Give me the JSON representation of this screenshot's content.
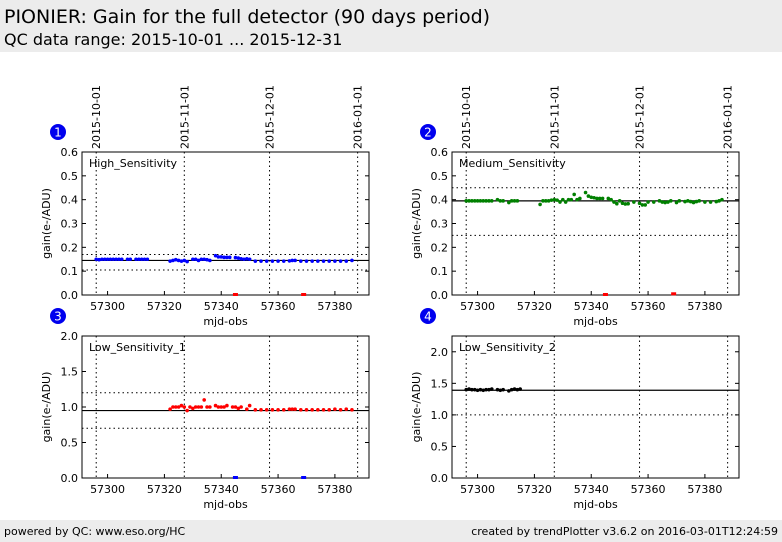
{
  "header": {
    "title": "PIONIER: Gain for the full detector (90 days period)",
    "subtitle": "QC data range: 2015-10-01 ... 2015-12-31"
  },
  "footer": {
    "left": "powered by QC: www.eso.org/HC",
    "right": "created by trendPlotter v3.6.2 on 2016-03-01T12:24:59"
  },
  "chart_data": [
    {
      "type": "scatter",
      "number": "1",
      "title": "High_Sensitivity",
      "xlabel": "mjd-obs",
      "ylabel": "gain(e-/ADU)",
      "xlim": [
        57291,
        57392
      ],
      "ylim": [
        0,
        0.6
      ],
      "yticks": [
        "0.0",
        "0.1",
        "0.2",
        "0.3",
        "0.4",
        "0.5",
        "0.6"
      ],
      "xticks": [
        "57300",
        "57320",
        "57340",
        "57360",
        "57380"
      ],
      "date_ticks": [
        {
          "label": "2015-10-01",
          "mjd": 57296
        },
        {
          "label": "2015-11-01",
          "mjd": 57327
        },
        {
          "label": "2015-12-01",
          "mjd": 57357
        },
        {
          "label": "2016-01-01",
          "mjd": 57388
        }
      ],
      "color": "#0000ff",
      "reference": 0.145,
      "limits": [
        0.105,
        0.17
      ],
      "points": [
        [
          57296,
          0.15
        ],
        [
          57297,
          0.148
        ],
        [
          57298,
          0.15
        ],
        [
          57299,
          0.15
        ],
        [
          57300,
          0.15
        ],
        [
          57301,
          0.15
        ],
        [
          57302,
          0.15
        ],
        [
          57303,
          0.15
        ],
        [
          57304,
          0.15
        ],
        [
          57305,
          0.15
        ],
        [
          57307,
          0.15
        ],
        [
          57308,
          0.15
        ],
        [
          57310,
          0.15
        ],
        [
          57311,
          0.15
        ],
        [
          57312,
          0.15
        ],
        [
          57313,
          0.15
        ],
        [
          57314,
          0.15
        ],
        [
          57322,
          0.142
        ],
        [
          57323,
          0.145
        ],
        [
          57324,
          0.148
        ],
        [
          57325,
          0.145
        ],
        [
          57326,
          0.142
        ],
        [
          57327,
          0.145
        ],
        [
          57328,
          0.14
        ],
        [
          57330,
          0.15
        ],
        [
          57331,
          0.15
        ],
        [
          57332,
          0.145
        ],
        [
          57333,
          0.15
        ],
        [
          57334,
          0.15
        ],
        [
          57335,
          0.148
        ],
        [
          57336,
          0.145
        ],
        [
          57338,
          0.165
        ],
        [
          57339,
          0.16
        ],
        [
          57340,
          0.16
        ],
        [
          57341,
          0.158
        ],
        [
          57342,
          0.158
        ],
        [
          57343,
          0.158
        ],
        [
          57345,
          0.157
        ],
        [
          57346,
          0.155
        ],
        [
          57347,
          0.152
        ],
        [
          57348,
          0.15
        ],
        [
          57349,
          0.152
        ],
        [
          57350,
          0.15
        ],
        [
          57352,
          0.142
        ],
        [
          57354,
          0.142
        ],
        [
          57356,
          0.142
        ],
        [
          57358,
          0.142
        ],
        [
          57360,
          0.142
        ],
        [
          57362,
          0.142
        ],
        [
          57364,
          0.143
        ],
        [
          57365,
          0.145
        ],
        [
          57366,
          0.145
        ],
        [
          57368,
          0.142
        ],
        [
          57370,
          0.142
        ],
        [
          57372,
          0.142
        ],
        [
          57374,
          0.142
        ],
        [
          57376,
          0.142
        ],
        [
          57378,
          0.142
        ],
        [
          57380,
          0.142
        ],
        [
          57382,
          0.142
        ],
        [
          57384,
          0.142
        ],
        [
          57386,
          0.145
        ]
      ],
      "outliers": [
        [
          57345,
          0
        ],
        [
          57369,
          0
        ]
      ],
      "outlier_color": "#ff0000"
    },
    {
      "type": "scatter",
      "number": "2",
      "title": "Medium_Sensitivity",
      "xlabel": "mjd-obs",
      "ylabel": "gain(e-/ADU)",
      "xlim": [
        57291,
        57392
      ],
      "ylim": [
        0,
        0.6
      ],
      "yticks": [
        "0.0",
        "0.1",
        "0.2",
        "0.3",
        "0.4",
        "0.5",
        "0.6"
      ],
      "xticks": [
        "57300",
        "57320",
        "57340",
        "57360",
        "57380"
      ],
      "date_ticks": [
        {
          "label": "2015-10-01",
          "mjd": 57296
        },
        {
          "label": "2015-11-01",
          "mjd": 57327
        },
        {
          "label": "2015-12-01",
          "mjd": 57357
        },
        {
          "label": "2016-01-01",
          "mjd": 57388
        }
      ],
      "color": "#008000",
      "reference": 0.395,
      "limits": [
        0.25,
        0.45
      ],
      "points": [
        [
          57296,
          0.395
        ],
        [
          57297,
          0.395
        ],
        [
          57298,
          0.395
        ],
        [
          57299,
          0.395
        ],
        [
          57300,
          0.395
        ],
        [
          57301,
          0.395
        ],
        [
          57302,
          0.395
        ],
        [
          57303,
          0.395
        ],
        [
          57304,
          0.395
        ],
        [
          57305,
          0.395
        ],
        [
          57307,
          0.4
        ],
        [
          57308,
          0.395
        ],
        [
          57309,
          0.395
        ],
        [
          57311,
          0.388
        ],
        [
          57312,
          0.395
        ],
        [
          57313,
          0.395
        ],
        [
          57314,
          0.395
        ],
        [
          57322,
          0.38
        ],
        [
          57323,
          0.395
        ],
        [
          57324,
          0.395
        ],
        [
          57325,
          0.395
        ],
        [
          57326,
          0.398
        ],
        [
          57327,
          0.4
        ],
        [
          57328,
          0.398
        ],
        [
          57329,
          0.39
        ],
        [
          57330,
          0.4
        ],
        [
          57331,
          0.39
        ],
        [
          57332,
          0.4
        ],
        [
          57333,
          0.4
        ],
        [
          57334,
          0.422
        ],
        [
          57335,
          0.4
        ],
        [
          57336,
          0.405
        ],
        [
          57338,
          0.43
        ],
        [
          57339,
          0.415
        ],
        [
          57340,
          0.41
        ],
        [
          57341,
          0.408
        ],
        [
          57342,
          0.405
        ],
        [
          57343,
          0.405
        ],
        [
          57344,
          0.405
        ],
        [
          57346,
          0.405
        ],
        [
          57347,
          0.4
        ],
        [
          57348,
          0.39
        ],
        [
          57349,
          0.383
        ],
        [
          57350,
          0.395
        ],
        [
          57351,
          0.385
        ],
        [
          57352,
          0.382
        ],
        [
          57353,
          0.383
        ],
        [
          57355,
          0.39
        ],
        [
          57357,
          0.385
        ],
        [
          57358,
          0.378
        ],
        [
          57359,
          0.378
        ],
        [
          57360,
          0.39
        ],
        [
          57362,
          0.39
        ],
        [
          57364,
          0.395
        ],
        [
          57365,
          0.39
        ],
        [
          57366,
          0.388
        ],
        [
          57367,
          0.39
        ],
        [
          57368,
          0.395
        ],
        [
          57370,
          0.388
        ],
        [
          57371,
          0.395
        ],
        [
          57373,
          0.392
        ],
        [
          57374,
          0.395
        ],
        [
          57375,
          0.392
        ],
        [
          57376,
          0.388
        ],
        [
          57377,
          0.392
        ],
        [
          57378,
          0.395
        ],
        [
          57380,
          0.39
        ],
        [
          57382,
          0.39
        ],
        [
          57384,
          0.392
        ],
        [
          57385,
          0.395
        ],
        [
          57386,
          0.4
        ]
      ],
      "outliers": [
        [
          57345,
          0
        ],
        [
          57369,
          0.003
        ]
      ],
      "outlier_color": "#ff0000"
    },
    {
      "type": "scatter",
      "number": "3",
      "title": "Low_Sensitivity_1",
      "xlabel": "mjd-obs",
      "ylabel": "gain(e-/ADU)",
      "xlim": [
        57291,
        57392
      ],
      "ylim": [
        0,
        2.0
      ],
      "yticks": [
        "0.0",
        "0.5",
        "1.0",
        "1.5",
        "2.0"
      ],
      "xticks": [
        "57300",
        "57320",
        "57340",
        "57360",
        "57380"
      ],
      "date_ticks": [
        {
          "label": "2015-10-01",
          "mjd": 57296
        },
        {
          "label": "2015-11-01",
          "mjd": 57327
        },
        {
          "label": "2015-12-01",
          "mjd": 57357
        },
        {
          "label": "2016-01-01",
          "mjd": 57388
        }
      ],
      "color": "#ff0000",
      "reference": 0.95,
      "limits": [
        0.7,
        1.2
      ],
      "points": [
        [
          57322,
          0.97
        ],
        [
          57323,
          1.0
        ],
        [
          57324,
          1.0
        ],
        [
          57325,
          1.0
        ],
        [
          57326,
          1.02
        ],
        [
          57327,
          1.0
        ],
        [
          57328,
          0.95
        ],
        [
          57329,
          1.0
        ],
        [
          57330,
          0.98
        ],
        [
          57331,
          1.0
        ],
        [
          57332,
          1.0
        ],
        [
          57333,
          1.0
        ],
        [
          57334,
          1.1
        ],
        [
          57335,
          1.0
        ],
        [
          57336,
          1.0
        ],
        [
          57338,
          1.02
        ],
        [
          57339,
          1.0
        ],
        [
          57340,
          1.0
        ],
        [
          57341,
          1.0
        ],
        [
          57342,
          1.02
        ],
        [
          57344,
          1.0
        ],
        [
          57345,
          1.0
        ],
        [
          57346,
          0.98
        ],
        [
          57347,
          1.0
        ],
        [
          57349,
          0.97
        ],
        [
          57350,
          1.02
        ],
        [
          57352,
          0.96
        ],
        [
          57354,
          0.96
        ],
        [
          57356,
          0.96
        ],
        [
          57358,
          0.96
        ],
        [
          57360,
          0.96
        ],
        [
          57362,
          0.96
        ],
        [
          57364,
          0.97
        ],
        [
          57365,
          0.97
        ],
        [
          57366,
          0.97
        ],
        [
          57368,
          0.96
        ],
        [
          57370,
          0.96
        ],
        [
          57372,
          0.96
        ],
        [
          57374,
          0.96
        ],
        [
          57376,
          0.96
        ],
        [
          57378,
          0.96
        ],
        [
          57380,
          0.97
        ],
        [
          57382,
          0.96
        ],
        [
          57384,
          0.97
        ],
        [
          57386,
          0.96
        ]
      ],
      "outliers": [
        [
          57345,
          0
        ],
        [
          57369,
          0
        ]
      ],
      "outlier_color": "#0000ff"
    },
    {
      "type": "scatter",
      "number": "4",
      "title": "Low_Sensitivity_2",
      "xlabel": "mjd-obs",
      "ylabel": "gain(e-/ADU)",
      "xlim": [
        57291,
        57392
      ],
      "ylim": [
        0,
        2.25
      ],
      "yticks": [
        "0.0",
        "0.5",
        "1.0",
        "1.5",
        "2.0"
      ],
      "xticks": [
        "57300",
        "57320",
        "57340",
        "57360",
        "57380"
      ],
      "date_ticks": [
        {
          "label": "2015-10-01",
          "mjd": 57296
        },
        {
          "label": "2015-11-01",
          "mjd": 57327
        },
        {
          "label": "2015-12-01",
          "mjd": 57357
        },
        {
          "label": "2016-01-01",
          "mjd": 57388
        }
      ],
      "color": "#000000",
      "reference": 1.39,
      "limits": [
        1.0
      ],
      "points": [
        [
          57296,
          1.4
        ],
        [
          57297,
          1.41
        ],
        [
          57298,
          1.4
        ],
        [
          57299,
          1.4
        ],
        [
          57300,
          1.39
        ],
        [
          57301,
          1.4
        ],
        [
          57302,
          1.39
        ],
        [
          57303,
          1.4
        ],
        [
          57304,
          1.4
        ],
        [
          57305,
          1.41
        ],
        [
          57307,
          1.4
        ],
        [
          57308,
          1.39
        ],
        [
          57309,
          1.4
        ],
        [
          57311,
          1.38
        ],
        [
          57312,
          1.4
        ],
        [
          57313,
          1.41
        ],
        [
          57314,
          1.4
        ],
        [
          57315,
          1.41
        ]
      ],
      "outliers": [],
      "outlier_color": "#ff0000"
    }
  ]
}
